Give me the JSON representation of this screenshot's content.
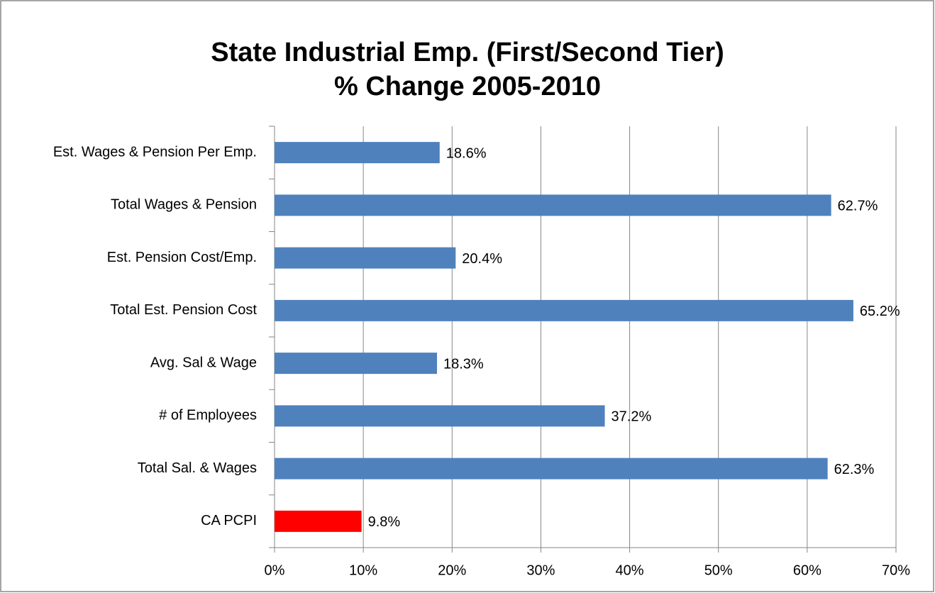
{
  "chart_data": {
    "type": "bar",
    "orientation": "horizontal",
    "title": [
      "State Industrial Emp. (First/Second Tier)",
      "% Change 2005-2010"
    ],
    "categories": [
      "Est. Wages & Pension Per Emp.",
      "Total Wages & Pension",
      "Est. Pension Cost/Emp.",
      "Total Est. Pension Cost",
      "Avg. Sal & Wage",
      "# of Employees",
      "Total Sal. & Wages",
      "CA PCPI"
    ],
    "values": [
      18.6,
      62.7,
      20.4,
      65.2,
      18.3,
      37.2,
      62.3,
      9.8
    ],
    "value_labels": [
      "18.6%",
      "62.7%",
      "20.4%",
      "65.2%",
      "18.3%",
      "37.2%",
      "62.3%",
      "9.8%"
    ],
    "colors": [
      "#4f81bd",
      "#4f81bd",
      "#4f81bd",
      "#4f81bd",
      "#4f81bd",
      "#4f81bd",
      "#4f81bd",
      "#ff0000"
    ],
    "xlim": [
      0,
      70
    ],
    "xticks": [
      {
        "value": 0,
        "label": "0%"
      },
      {
        "value": 10,
        "label": "10%"
      },
      {
        "value": 20,
        "label": "20%"
      },
      {
        "value": 30,
        "label": "30%"
      },
      {
        "value": 40,
        "label": "40%"
      },
      {
        "value": 50,
        "label": "50%"
      },
      {
        "value": 60,
        "label": "60%"
      },
      {
        "value": 70,
        "label": "70%"
      }
    ],
    "grid": true
  }
}
